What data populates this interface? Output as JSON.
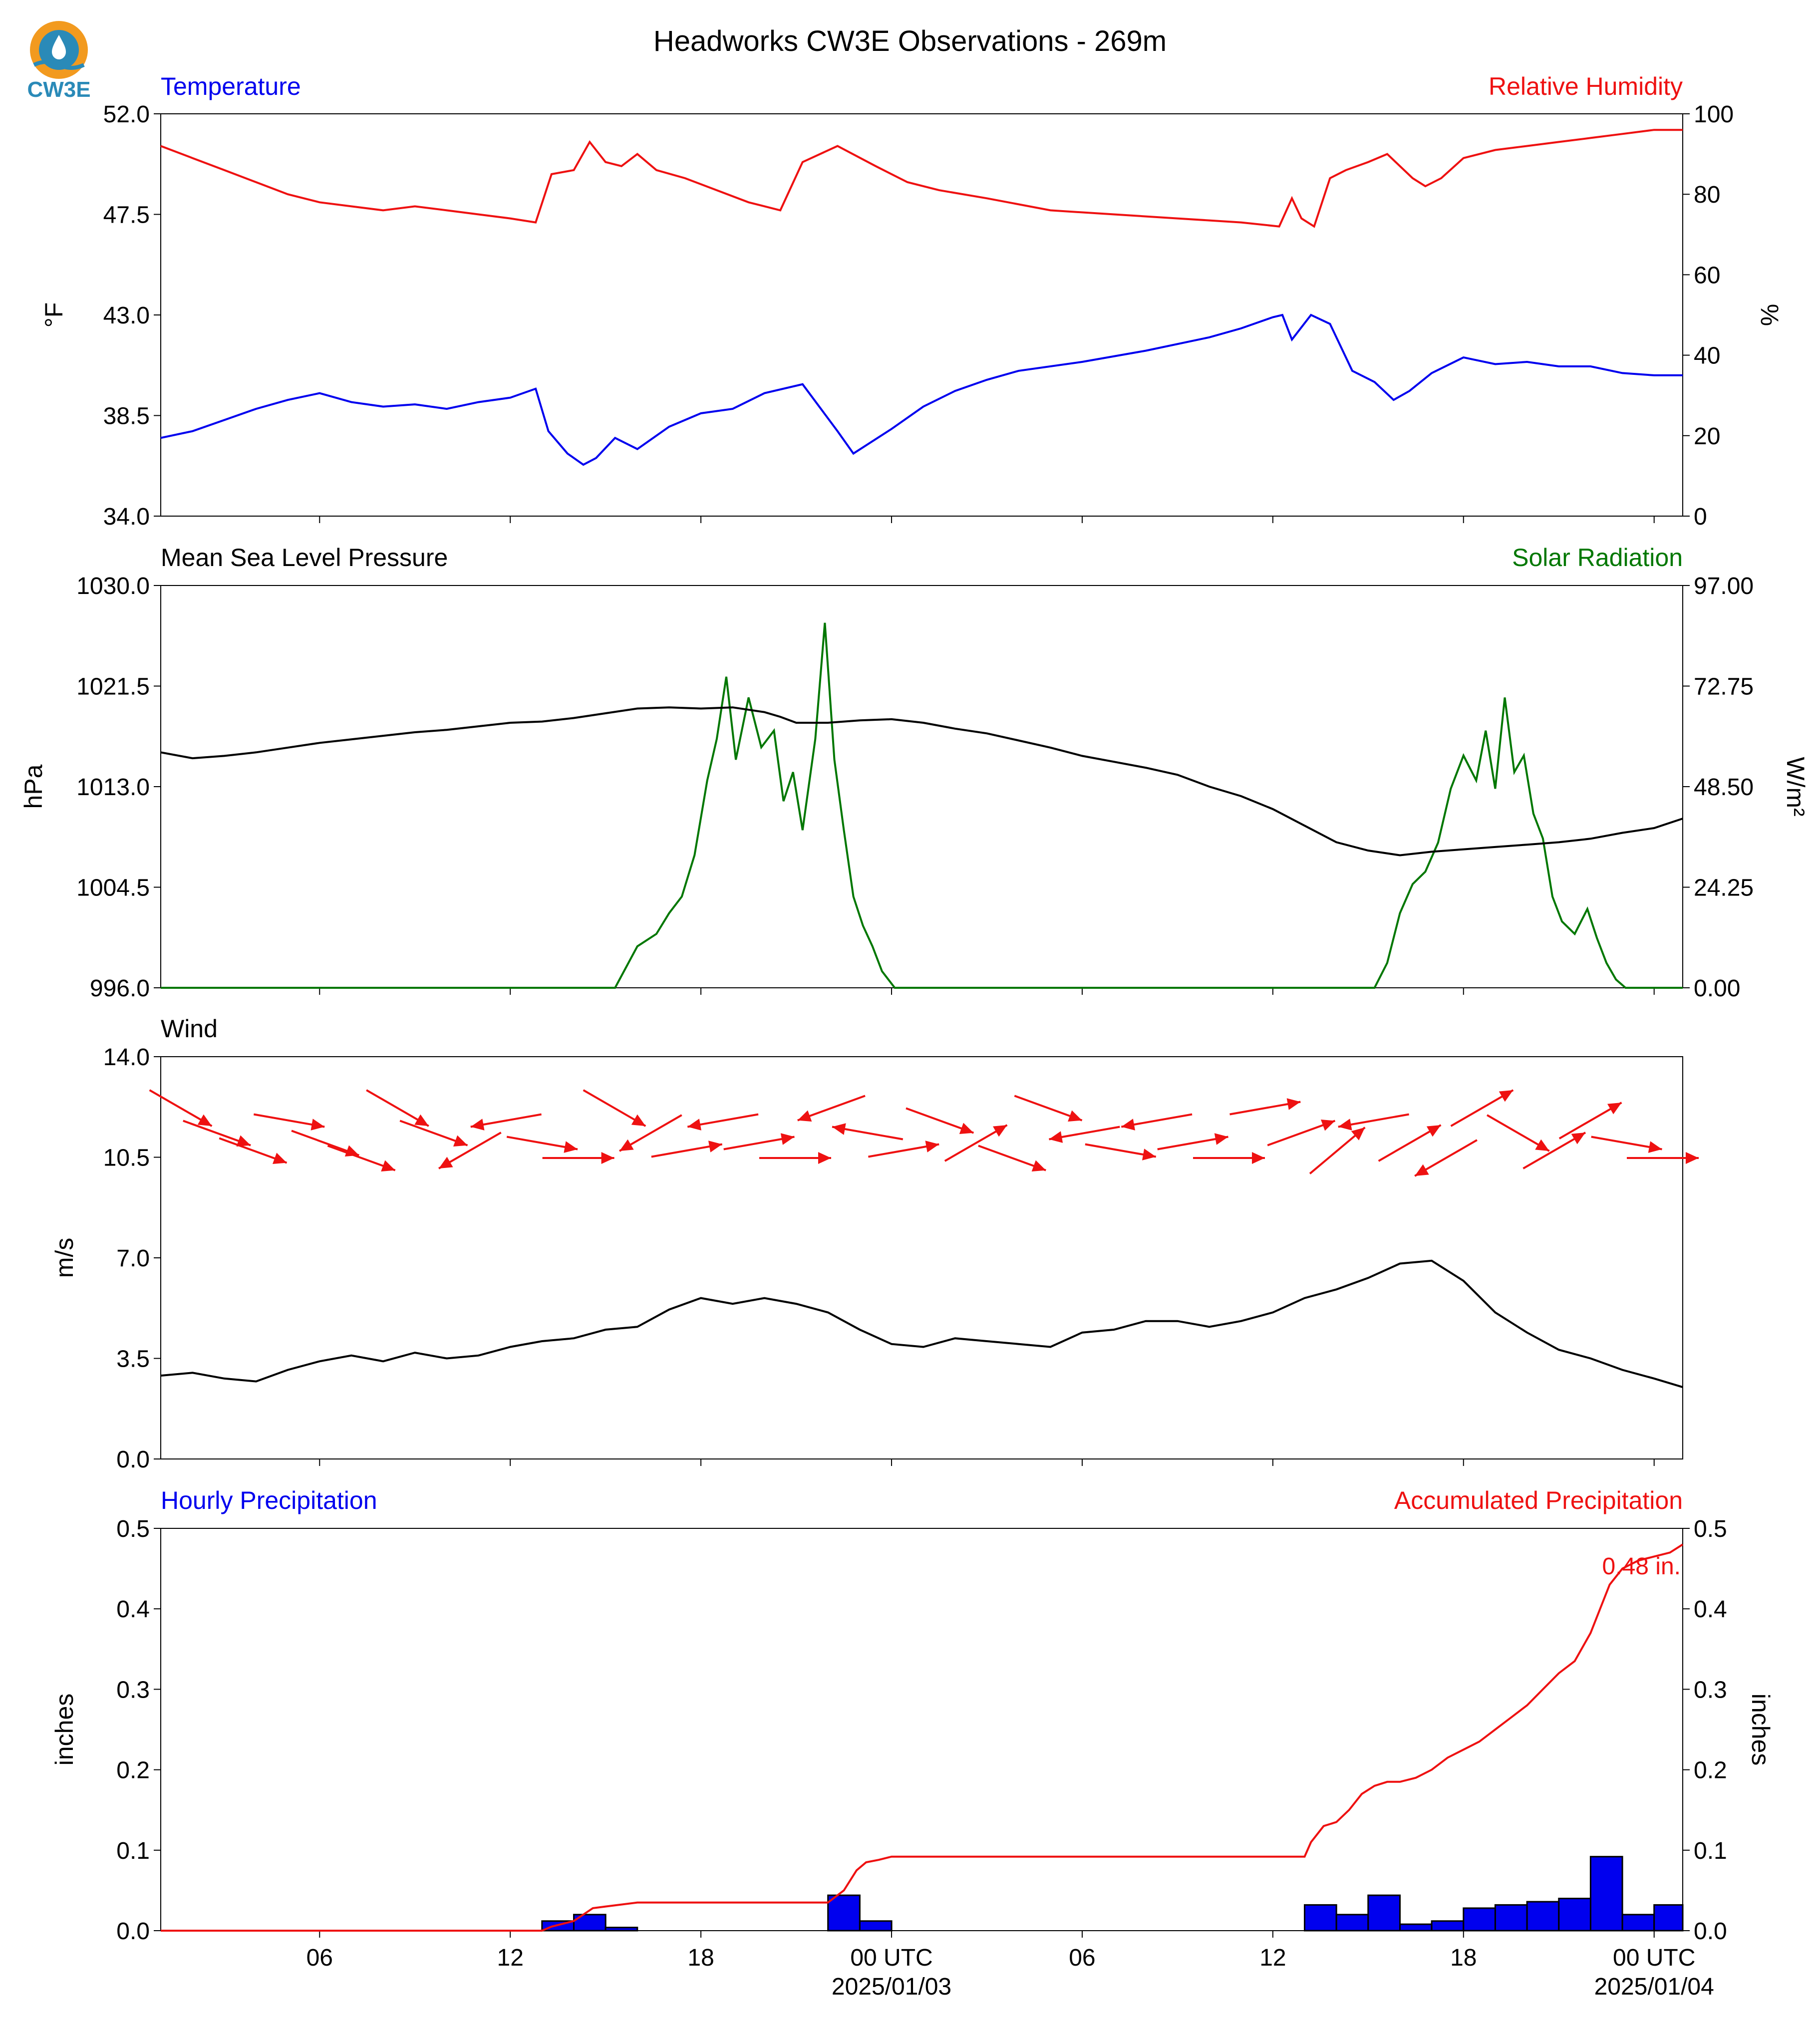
{
  "figure": {
    "title": "Headworks CW3E Observations - 269m",
    "logo_text": "CW3E"
  },
  "colors": {
    "blue": "#0000ee",
    "red": "#ee1111",
    "green": "#007700",
    "black": "#000000"
  },
  "time_axis": {
    "tick_labels": [
      "06",
      "12",
      "18",
      "00 UTC",
      "06",
      "12",
      "18",
      "00 UTC"
    ],
    "tick_hours": [
      6,
      12,
      18,
      24,
      30,
      36,
      42,
      48
    ],
    "date_labels": [
      "2025/01/03",
      "2025/01/04"
    ],
    "date_label_hours": [
      24,
      48
    ],
    "range_hours": [
      1,
      48.9
    ]
  },
  "chart_data": [
    {
      "type": "line",
      "left_title": "Temperature",
      "right_title": "Relative Humidity",
      "ylabel": "°F",
      "ylabel_right": "%",
      "ylim": [
        34.0,
        52.0
      ],
      "yticks": [
        "34.0",
        "38.5",
        "43.0",
        "47.5",
        "52.0"
      ],
      "ylim_right": [
        0,
        100
      ],
      "yticks_right": [
        "0",
        "20",
        "40",
        "60",
        "80",
        "100"
      ],
      "series": [
        {
          "name": "Temperature",
          "axis": "left",
          "x": [
            1,
            2,
            3,
            4,
            5,
            6,
            7,
            8,
            9,
            10,
            11,
            12,
            12.8,
            13.2,
            13.8,
            14.3,
            14.7,
            15.3,
            16,
            17,
            18,
            19,
            20,
            21.2,
            22.3,
            22.8,
            24,
            25,
            26,
            27,
            28,
            30,
            32,
            34,
            35,
            36,
            36.3,
            36.6,
            37.2,
            37.8,
            38.5,
            39.2,
            39.8,
            40.3,
            41,
            42,
            43,
            44,
            45,
            46,
            47,
            48,
            48.9
          ],
          "y": [
            37.5,
            37.8,
            38.3,
            38.8,
            39.2,
            39.5,
            39.1,
            38.9,
            39.0,
            38.8,
            39.1,
            39.3,
            39.7,
            37.8,
            36.8,
            36.3,
            36.6,
            37.5,
            37.0,
            38.0,
            38.6,
            38.8,
            39.5,
            39.9,
            37.8,
            36.8,
            37.9,
            38.9,
            39.6,
            40.1,
            40.5,
            40.9,
            41.4,
            42.0,
            42.4,
            42.9,
            43.0,
            41.9,
            43.0,
            42.6,
            40.5,
            40.0,
            39.2,
            39.6,
            40.4,
            41.1,
            40.8,
            40.9,
            40.7,
            40.7,
            40.4,
            40.3,
            40.3
          ]
        },
        {
          "name": "Relative Humidity",
          "axis": "right",
          "x": [
            1,
            2,
            3,
            4,
            5,
            6,
            7,
            8,
            9,
            10,
            11,
            12,
            12.8,
            13.3,
            14,
            14.5,
            15,
            15.5,
            16,
            16.6,
            17.5,
            18.5,
            19.5,
            20.5,
            21.2,
            22.3,
            23.5,
            24.5,
            25.5,
            27,
            29,
            31,
            33,
            35,
            36.2,
            36.6,
            36.9,
            37.3,
            37.8,
            38.3,
            39,
            39.6,
            40.4,
            40.8,
            41.3,
            42,
            43,
            44,
            45,
            46,
            47,
            48,
            48.9
          ],
          "y": [
            92,
            89,
            86,
            83,
            80,
            78,
            77,
            76,
            77,
            76,
            75,
            74,
            73,
            85,
            86,
            93,
            88,
            87,
            90,
            86,
            84,
            81,
            78,
            76,
            88,
            92,
            87,
            83,
            81,
            79,
            76,
            75,
            74,
            73,
            72,
            79,
            74,
            72,
            84,
            86,
            88,
            90,
            84,
            82,
            84,
            89,
            91,
            92,
            93,
            94,
            95,
            96,
            96
          ]
        }
      ]
    },
    {
      "type": "line",
      "left_title": "Mean Sea Level Pressure",
      "right_title": "Solar Radiation",
      "ylabel": "hPa",
      "ylabel_right": "W/m²",
      "ylim": [
        996.0,
        1030.0
      ],
      "yticks": [
        "996.0",
        "1004.5",
        "1013.0",
        "1021.5",
        "1030.0"
      ],
      "ylim_right": [
        0,
        97
      ],
      "yticks_right": [
        "0.00",
        "24.25",
        "48.50",
        "72.75",
        "97.00"
      ],
      "series": [
        {
          "name": "Mean Sea Level Pressure",
          "axis": "left",
          "x": [
            1,
            2,
            3,
            4,
            5,
            6,
            7,
            8,
            9,
            10,
            11,
            12,
            13,
            14,
            15,
            16,
            17,
            18,
            19,
            20,
            20.5,
            21,
            22,
            23,
            24,
            25,
            26,
            27,
            28,
            29,
            30,
            31,
            32,
            33,
            34,
            35,
            36,
            37,
            38,
            39,
            40,
            41,
            42,
            43,
            44,
            45,
            46,
            47,
            48,
            48.9
          ],
          "y": [
            1015.9,
            1015.4,
            1015.6,
            1015.9,
            1016.3,
            1016.7,
            1017.0,
            1017.3,
            1017.6,
            1017.8,
            1018.1,
            1018.4,
            1018.5,
            1018.8,
            1019.2,
            1019.6,
            1019.7,
            1019.6,
            1019.7,
            1019.3,
            1018.9,
            1018.4,
            1018.4,
            1018.6,
            1018.7,
            1018.4,
            1017.9,
            1017.5,
            1016.9,
            1016.3,
            1015.6,
            1015.1,
            1014.6,
            1014.0,
            1013.0,
            1012.2,
            1011.1,
            1009.7,
            1008.3,
            1007.6,
            1007.2,
            1007.5,
            1007.7,
            1007.9,
            1008.1,
            1008.3,
            1008.6,
            1009.1,
            1009.5,
            1010.3
          ]
        },
        {
          "name": "Solar Radiation",
          "axis": "right",
          "x": [
            1,
            15.3,
            16,
            16.6,
            17,
            17.4,
            17.8,
            18.2,
            18.5,
            18.8,
            19.1,
            19.5,
            19.9,
            20.3,
            20.6,
            20.9,
            21.2,
            21.6,
            21.9,
            22.2,
            22.5,
            22.8,
            23.1,
            23.4,
            23.7,
            24.1,
            24.6,
            25,
            39.2,
            39.6,
            40,
            40.4,
            40.8,
            41.2,
            41.6,
            42,
            42.4,
            42.7,
            43,
            43.3,
            43.6,
            43.9,
            44.2,
            44.5,
            44.8,
            45.1,
            45.5,
            45.9,
            46.2,
            46.5,
            46.8,
            47.1,
            47.4,
            47.8,
            48.1,
            48.5,
            48.9
          ],
          "y": [
            0,
            0,
            10,
            13,
            18,
            22,
            32,
            50,
            60,
            75,
            55,
            70,
            58,
            62,
            45,
            52,
            38,
            60,
            88,
            55,
            38,
            22,
            15,
            10,
            4,
            0,
            0,
            0,
            0,
            6,
            18,
            25,
            28,
            35,
            48,
            56,
            50,
            62,
            48,
            70,
            52,
            56,
            42,
            36,
            22,
            16,
            13,
            19,
            12,
            6,
            2,
            0,
            0,
            0,
            0,
            0,
            0
          ]
        }
      ]
    },
    {
      "type": "line",
      "left_title": "Wind",
      "ylabel": "m/s",
      "ylim": [
        0.0,
        14.0
      ],
      "yticks": [
        "0.0",
        "3.5",
        "7.0",
        "10.5",
        "14.0"
      ],
      "series": [
        {
          "name": "Wind speed",
          "x": [
            1,
            2,
            3,
            4,
            5,
            6,
            7,
            8,
            9,
            10,
            11,
            12,
            13,
            14,
            15,
            16,
            17,
            18,
            19,
            20,
            21,
            22,
            23,
            24,
            25,
            26,
            27,
            28,
            29,
            30,
            31,
            32,
            33,
            34,
            35,
            36,
            37,
            38,
            39,
            40,
            41,
            42,
            43,
            44,
            45,
            46,
            47,
            48,
            48.9
          ],
          "y": [
            2.9,
            3.0,
            2.8,
            2.7,
            3.1,
            3.4,
            3.6,
            3.4,
            3.7,
            3.5,
            3.6,
            3.9,
            4.1,
            4.2,
            4.5,
            4.6,
            5.2,
            5.6,
            5.4,
            5.6,
            5.4,
            5.1,
            4.5,
            4.0,
            3.9,
            4.2,
            4.1,
            4.0,
            3.9,
            4.4,
            4.5,
            4.8,
            4.8,
            4.6,
            4.8,
            5.1,
            5.6,
            5.9,
            6.3,
            6.8,
            6.9,
            6.2,
            5.1,
            4.4,
            3.8,
            3.5,
            3.1,
            2.8,
            2.5
          ]
        }
      ],
      "wind_arrows": {
        "direction_deg": [
          300,
          290,
          290,
          280,
          290,
          290,
          300,
          290,
          60,
          80,
          280,
          270,
          300,
          60,
          260,
          80,
          260,
          270,
          70,
          100,
          260,
          290,
          240,
          290,
          290,
          80,
          280,
          80,
          260,
          270,
          260,
          250,
          230,
          80,
          240,
          60,
          240,
          300,
          240,
          240,
          280,
          270
        ],
        "speed_ms": [
          5,
          5,
          5,
          5,
          5,
          5,
          5,
          5,
          5,
          5,
          5,
          5,
          5,
          5,
          5,
          5,
          5,
          5,
          5,
          5,
          5,
          5,
          5,
          5,
          5,
          5,
          5,
          5,
          5,
          5,
          5,
          5,
          5,
          5,
          5,
          5,
          5,
          5,
          5,
          5,
          5,
          5
        ]
      }
    },
    {
      "type": "bar",
      "left_title": "Hourly Precipitation",
      "right_title": "Accumulated Precipitation",
      "ylabel": "inches",
      "ylabel_right": "inches",
      "ylim": [
        0.0,
        0.5
      ],
      "yticks": [
        "0.0",
        "0.1",
        "0.2",
        "0.3",
        "0.4",
        "0.5"
      ],
      "ylim_right": [
        0.0,
        0.5
      ],
      "yticks_right": [
        "0.0",
        "0.1",
        "0.2",
        "0.3",
        "0.4",
        "0.5"
      ],
      "bars": {
        "name": "Hourly Precipitation",
        "hour_start": [
          13,
          14,
          15,
          22,
          23,
          37,
          38,
          39,
          40,
          41,
          42,
          43,
          44,
          45,
          46,
          47,
          48
        ],
        "values": [
          0.012,
          0.02,
          0.004,
          0.044,
          0.012,
          0.032,
          0.02,
          0.044,
          0.008,
          0.012,
          0.028,
          0.032,
          0.036,
          0.04,
          0.092,
          0.02,
          0.032
        ]
      },
      "accumulated": {
        "name": "Accumulated Precipitation",
        "x": [
          1,
          13,
          13.3,
          14,
          14.6,
          15,
          16,
          22,
          22.5,
          22.9,
          23.2,
          23.6,
          24,
          37,
          37.2,
          37.6,
          38,
          38.4,
          38.8,
          39.2,
          39.6,
          40,
          40.5,
          41,
          41.5,
          42,
          42.5,
          43,
          43.5,
          44,
          44.5,
          45,
          45.5,
          46,
          46.3,
          46.6,
          47,
          47.5,
          48,
          48.5,
          48.9
        ],
        "y": [
          0.0,
          0.0,
          0.005,
          0.012,
          0.028,
          0.03,
          0.035,
          0.035,
          0.05,
          0.075,
          0.085,
          0.088,
          0.092,
          0.092,
          0.11,
          0.13,
          0.135,
          0.15,
          0.17,
          0.18,
          0.185,
          0.185,
          0.19,
          0.2,
          0.215,
          0.225,
          0.235,
          0.25,
          0.265,
          0.28,
          0.3,
          0.32,
          0.335,
          0.37,
          0.4,
          0.43,
          0.45,
          0.46,
          0.465,
          0.47,
          0.48
        ]
      },
      "annotation": "0.48 in."
    }
  ]
}
